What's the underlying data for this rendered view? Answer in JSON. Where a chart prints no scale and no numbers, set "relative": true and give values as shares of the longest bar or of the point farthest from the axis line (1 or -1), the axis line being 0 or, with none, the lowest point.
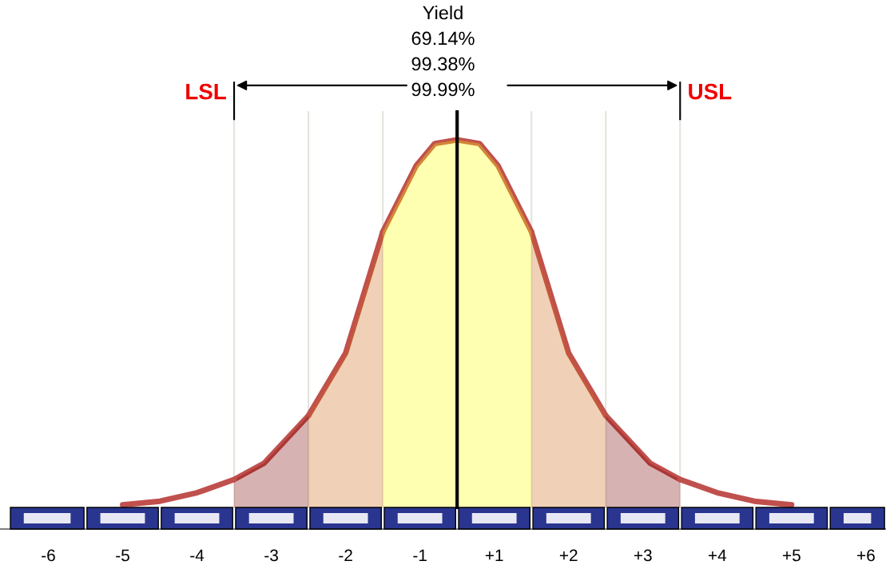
{
  "chart_data": {
    "type": "line",
    "relative": true,
    "series": [
      {
        "type": "area",
        "color": "#ffff00",
        "x": [
          -1,
          -0.55,
          -0.3,
          0,
          0.3,
          0.55,
          1
        ],
        "values": [
          0.75,
          0.93,
          0.99,
          1,
          0.99,
          0.93,
          0.75
        ]
      },
      {
        "type": "area",
        "color": "#cc6611",
        "x": [
          -2,
          -1.5,
          -1
        ],
        "values": [
          0.25,
          0.42,
          0.75
        ]
      },
      {
        "type": "area",
        "color": "#cc6611",
        "x": [
          1,
          1.5,
          2
        ],
        "values": [
          0.75,
          0.42,
          0.25
        ]
      },
      {
        "type": "area",
        "color": "#7a0000",
        "x": [
          -3,
          -2.6,
          -2
        ],
        "values": [
          0.076,
          0.12,
          0.25
        ]
      },
      {
        "type": "area",
        "color": "#7a0000",
        "x": [
          2,
          2.6,
          3
        ],
        "values": [
          0.25,
          0.12,
          0.076
        ]
      },
      {
        "color": "#c0504d",
        "x": [
          -4.5,
          -4,
          -3.5,
          -3
        ],
        "values": [
          0.007,
          0.017,
          0.04,
          0.076
        ]
      },
      {
        "color": "#c0504d",
        "x": [
          3,
          3.5,
          4,
          4.5
        ],
        "values": [
          0.076,
          0.04,
          0.017,
          0.007
        ]
      }
    ],
    "xlim": [
      -6.15,
      5.77
    ],
    "xticks": [
      {
        "value": -5.5,
        "label": "-6"
      },
      {
        "value": -4.5,
        "label": "-5"
      },
      {
        "value": -3.5,
        "label": "-4"
      },
      {
        "value": -2.5,
        "label": "-3"
      },
      {
        "value": -1.5,
        "label": "-2"
      },
      {
        "value": -0.5,
        "label": "-1"
      },
      {
        "value": 0.5,
        "label": "+1"
      },
      {
        "value": 1.5,
        "label": "+2"
      },
      {
        "value": 2.5,
        "label": "+3"
      },
      {
        "value": 3.5,
        "label": "+4"
      },
      {
        "value": 4.5,
        "label": "+5"
      },
      {
        "value": 5.5,
        "label": "+6"
      }
    ],
    "tick_labels": "x",
    "grid": false,
    "legend": false,
    "marker": "none",
    "line_style": "solid",
    "ref_lines": [
      {
        "axis": "x",
        "value": -3,
        "label": "LSL",
        "color": "#e4e4dc"
      },
      {
        "axis": "x",
        "value": 3,
        "label": "USL",
        "color": "#e4e4dc"
      },
      {
        "axis": "x",
        "value": -2,
        "color": "#e4e4dc"
      },
      {
        "axis": "x",
        "value": -1,
        "color": "#e4e4dc"
      },
      {
        "axis": "x",
        "value": 1,
        "color": "#e4e4dc"
      },
      {
        "axis": "x",
        "value": 2,
        "color": "#e4e4dc"
      },
      {
        "axis": "x",
        "value": 0,
        "color": "#000000"
      }
    ],
    "annotations": [
      "Yield",
      "69.14%",
      "99.38%",
      "99.99%"
    ]
  }
}
